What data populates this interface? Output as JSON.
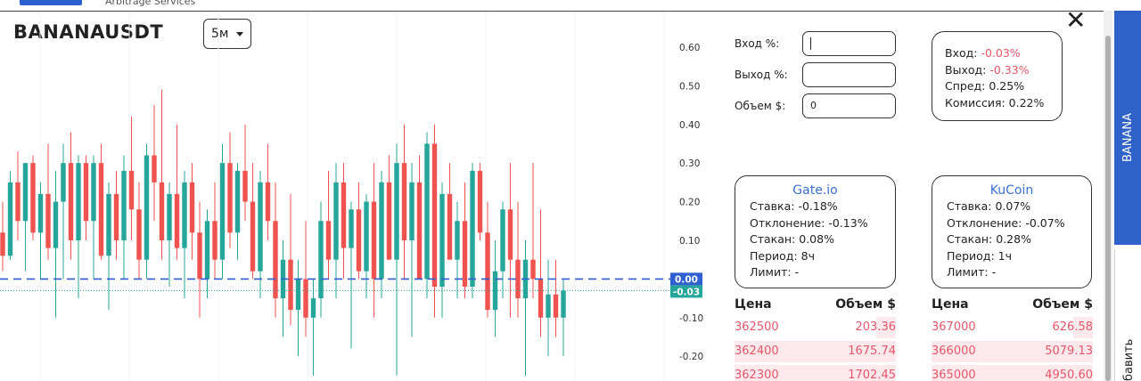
{
  "header": {
    "brand_subtitle": "Arbitrage Services"
  },
  "chart": {
    "type": "candlestick",
    "symbol": "BANANAUSDT",
    "interval": "5м",
    "ylim": [
      -0.264,
      0.692
    ],
    "yticks": [
      {
        "value": 0.6,
        "label": "0.60"
      },
      {
        "value": 0.5,
        "label": "0.50"
      },
      {
        "value": 0.4,
        "label": "0.40"
      },
      {
        "value": 0.3,
        "label": "0.30"
      },
      {
        "value": 0.2,
        "label": "0.20"
      },
      {
        "value": 0.1,
        "label": "0.10"
      },
      {
        "value": -0.1,
        "label": "-0.10"
      },
      {
        "value": -0.2,
        "label": "-0.20"
      }
    ],
    "entry_line": {
      "value": 0,
      "label": "0.00"
    },
    "last_price": {
      "value": -0.03,
      "label": "-0.03"
    },
    "candles": [
      [
        0.12,
        0.2,
        0.02,
        0.06
      ],
      [
        0.06,
        0.28,
        0.05,
        0.25
      ],
      [
        0.25,
        0.33,
        0.1,
        0.15
      ],
      [
        0.15,
        0.3,
        0.02,
        0.3
      ],
      [
        0.3,
        0.32,
        0.1,
        0.12
      ],
      [
        0.12,
        0.25,
        0,
        0.22
      ],
      [
        0.22,
        0.35,
        0.05,
        0.08
      ],
      [
        0.08,
        0.28,
        -0.1,
        0.2
      ],
      [
        0.2,
        0.35,
        0,
        0.3
      ],
      [
        0.3,
        0.38,
        0.05,
        0.1
      ],
      [
        0.1,
        0.32,
        -0.05,
        0.3
      ],
      [
        0.3,
        0.32,
        0.1,
        0.15
      ],
      [
        0.15,
        0.32,
        0,
        0.3
      ],
      [
        0.3,
        0.35,
        0.05,
        0.06
      ],
      [
        0.06,
        0.25,
        -0.08,
        0.22
      ],
      [
        0.22,
        0.28,
        0.05,
        0.1
      ],
      [
        0.1,
        0.32,
        0,
        0.28
      ],
      [
        0.28,
        0.42,
        0.1,
        0.18
      ],
      [
        0.18,
        0.25,
        0,
        0.05
      ],
      [
        0.05,
        0.35,
        0,
        0.32
      ],
      [
        0.32,
        0.45,
        0.15,
        0.25
      ],
      [
        0.25,
        0.49,
        0.05,
        0.1
      ],
      [
        0.1,
        0.25,
        -0.02,
        0.22
      ],
      [
        0.22,
        0.4,
        0.05,
        0.08
      ],
      [
        0.08,
        0.28,
        -0.05,
        0.25
      ],
      [
        0.25,
        0.3,
        0.05,
        0.12
      ],
      [
        0.12,
        0.2,
        -0.1,
        0
      ],
      [
        0,
        0.18,
        -0.05,
        0.15
      ],
      [
        0.15,
        0.25,
        0,
        0.05
      ],
      [
        0.05,
        0.35,
        0,
        0.3
      ],
      [
        0.3,
        0.38,
        0.08,
        0.12
      ],
      [
        0.12,
        0.3,
        0.05,
        0.28
      ],
      [
        0.28,
        0.4,
        0.15,
        0.2
      ],
      [
        0.2,
        0.3,
        0,
        0.02
      ],
      [
        0.02,
        0.28,
        -0.05,
        0.25
      ],
      [
        0.25,
        0.35,
        0.1,
        0.15
      ],
      [
        0.15,
        0.25,
        -0.1,
        -0.05
      ],
      [
        -0.05,
        0.1,
        -0.15,
        0.05
      ],
      [
        0.05,
        0.22,
        -0.12,
        -0.08
      ],
      [
        -0.08,
        0.05,
        -0.2,
        0
      ],
      [
        0,
        0.15,
        -0.15,
        -0.1
      ],
      [
        -0.1,
        0,
        -0.25,
        -0.05
      ],
      [
        -0.05,
        0.2,
        -0.1,
        0.15
      ],
      [
        0.15,
        0.28,
        0,
        0.05
      ],
      [
        0.05,
        0.3,
        -0.05,
        0.25
      ],
      [
        0.25,
        0.3,
        0,
        0.08
      ],
      [
        0.08,
        0.2,
        -0.18,
        0.18
      ],
      [
        0.18,
        0.25,
        0,
        0.02
      ],
      [
        0.02,
        0.22,
        -0.05,
        0.2
      ],
      [
        0.2,
        0.3,
        -0.1,
        0
      ],
      [
        0,
        0.28,
        -0.05,
        0.25
      ],
      [
        0.25,
        0.32,
        0.05,
        0.05
      ],
      [
        0.05,
        0.35,
        -0.25,
        0.3
      ],
      [
        0.3,
        0.4,
        0,
        0.1
      ],
      [
        0.1,
        0.3,
        -0.15,
        0.25
      ],
      [
        0.25,
        0.32,
        0,
        0
      ],
      [
        0,
        0.38,
        -0.05,
        0.35
      ],
      [
        0.35,
        0.4,
        -0.1,
        -0.02
      ],
      [
        -0.02,
        0.25,
        -0.1,
        0.22
      ],
      [
        0.22,
        0.3,
        0.05,
        0.05
      ],
      [
        0.05,
        0.2,
        -0.05,
        0.15
      ],
      [
        0.15,
        0.25,
        -0.05,
        -0.02
      ],
      [
        -0.02,
        0.3,
        -0.05,
        0.28
      ],
      [
        0.28,
        0.3,
        0.1,
        0.12
      ],
      [
        0.12,
        0.2,
        -0.1,
        -0.08
      ],
      [
        -0.08,
        0.1,
        -0.15,
        0.02
      ],
      [
        0.02,
        0.2,
        -0.05,
        0.18
      ],
      [
        0.18,
        0.3,
        -0.1,
        0.05
      ],
      [
        0.05,
        0.2,
        -0.1,
        -0.05
      ],
      [
        -0.05,
        0.1,
        -0.25,
        0.05
      ],
      [
        0.05,
        0.3,
        -0.05,
        0
      ],
      [
        0,
        0.18,
        -0.15,
        -0.1
      ],
      [
        -0.1,
        0.05,
        -0.2,
        -0.04
      ],
      [
        -0.04,
        0.05,
        -0.15,
        -0.1
      ],
      [
        -0.1,
        0,
        -0.2,
        -0.03
      ]
    ]
  },
  "form": {
    "fields": [
      {
        "label": "Вход %:"
      },
      {
        "label": "Выход %:"
      },
      {
        "label": "Объем $:",
        "value": "0"
      }
    ]
  },
  "summary": {
    "lines": [
      {
        "label": "Вход:",
        "value": "-0.03%"
      },
      {
        "label": "Выход:",
        "value": "-0.33%"
      },
      {
        "label": "Спред:",
        "value": "0.25%"
      },
      {
        "label": "Комиссия:",
        "value": "0.22%"
      }
    ]
  },
  "exchanges": [
    {
      "name": "Gate.io",
      "rows": [
        {
          "label": "Ставка:",
          "value": "-0.18%"
        },
        {
          "label": "Отклонение:",
          "value": "-0.13%"
        },
        {
          "label": "Стакан:",
          "value": "0.08%"
        },
        {
          "label": "Период:",
          "value": "8ч"
        },
        {
          "label": "Лимит:",
          "value": "-"
        }
      ],
      "orderbook": {
        "headers": [
          "Цена",
          "Объем $"
        ],
        "rows": [
          [
            "362500",
            "203.36"
          ],
          [
            "362400",
            "1675.74"
          ],
          [
            "362300",
            "1702.45"
          ]
        ]
      }
    },
    {
      "name": "KuCoin",
      "rows": [
        {
          "label": "Ставка:",
          "value": "0.07%"
        },
        {
          "label": "Отклонение:",
          "value": "-0.07%"
        },
        {
          "label": "Стакан:",
          "value": "0.28%"
        },
        {
          "label": "Период:",
          "value": "1ч"
        },
        {
          "label": "Лимит:",
          "value": "-"
        }
      ],
      "orderbook": {
        "headers": [
          "Цена",
          "Объем $"
        ],
        "rows": [
          [
            "367000",
            "626.58"
          ],
          [
            "366000",
            "5079.13"
          ],
          [
            "365000",
            "4950.60"
          ]
        ]
      }
    }
  ],
  "sidebar": {
    "tabs": [
      "BANANA",
      "бавить"
    ]
  }
}
